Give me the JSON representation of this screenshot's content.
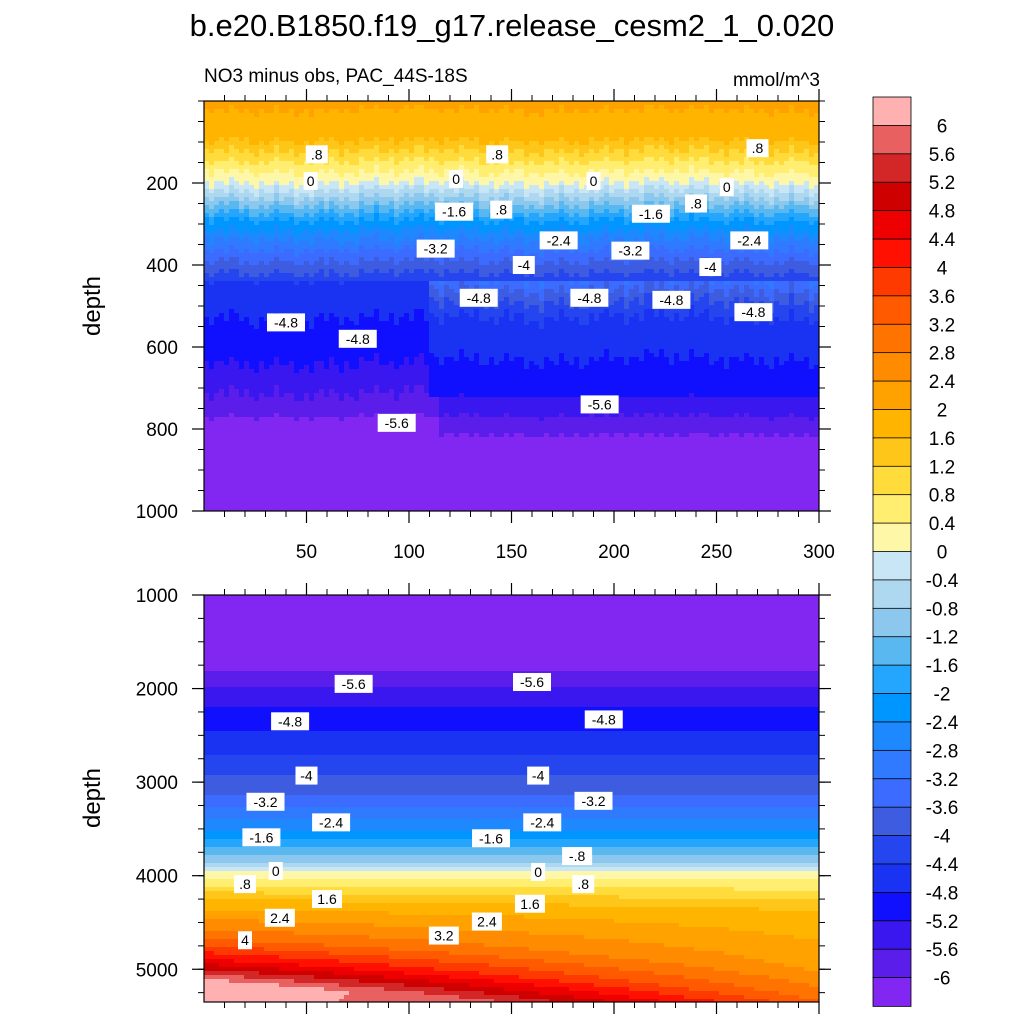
{
  "title": "b.e20.B1850.f19_g17.release_cesm2_1_0.020",
  "chart_data": {
    "type": "heatmap",
    "title": "b.e20.B1850.f19_g17.release_cesm2_1_0.020",
    "variable_label": "NO3 minus obs, PAC_44S-18S",
    "units": "mmol/m^3",
    "x_range": [
      0,
      300
    ],
    "x_ticks": [
      50,
      100,
      150,
      200,
      250,
      300
    ],
    "panels": [
      {
        "name": "upper",
        "ylabel": "depth",
        "ylim": [
          0,
          1000
        ],
        "y_ticks": [
          200,
          400,
          600,
          800,
          1000
        ],
        "contour_labels": [
          {
            "x": 55,
            "depth": 130,
            "text": ".8"
          },
          {
            "x": 143,
            "depth": 130,
            "text": ".8"
          },
          {
            "x": 270,
            "depth": 115,
            "text": ".8"
          },
          {
            "x": 52,
            "depth": 195,
            "text": "0"
          },
          {
            "x": 123,
            "depth": 190,
            "text": "0"
          },
          {
            "x": 190,
            "depth": 195,
            "text": "0"
          },
          {
            "x": 255,
            "depth": 210,
            "text": "0"
          },
          {
            "x": 145,
            "depth": 265,
            "text": ".8"
          },
          {
            "x": 240,
            "depth": 250,
            "text": ".8"
          },
          {
            "x": 122,
            "depth": 270,
            "text": "-1.6"
          },
          {
            "x": 218,
            "depth": 275,
            "text": "-1.6"
          },
          {
            "x": 173,
            "depth": 340,
            "text": "-2.4"
          },
          {
            "x": 266,
            "depth": 340,
            "text": "-2.4"
          },
          {
            "x": 113,
            "depth": 360,
            "text": "-3.2"
          },
          {
            "x": 208,
            "depth": 365,
            "text": "-3.2"
          },
          {
            "x": 156,
            "depth": 400,
            "text": "-4"
          },
          {
            "x": 247,
            "depth": 405,
            "text": "-4"
          },
          {
            "x": 134,
            "depth": 480,
            "text": "-4.8"
          },
          {
            "x": 188,
            "depth": 480,
            "text": "-4.8"
          },
          {
            "x": 228,
            "depth": 485,
            "text": "-4.8"
          },
          {
            "x": 268,
            "depth": 515,
            "text": "-4.8"
          },
          {
            "x": 40,
            "depth": 540,
            "text": "-4.8"
          },
          {
            "x": 75,
            "depth": 580,
            "text": "-4.8"
          },
          {
            "x": 94,
            "depth": 785,
            "text": "-5.6"
          },
          {
            "x": 193,
            "depth": 740,
            "text": "-5.6"
          }
        ]
      },
      {
        "name": "lower",
        "ylabel": "depth",
        "ylim": [
          1000,
          5350
        ],
        "y_ticks": [
          1000,
          2000,
          3000,
          4000,
          5000
        ],
        "contour_labels": [
          {
            "x": 73,
            "depth": 1950,
            "text": "-5.6"
          },
          {
            "x": 160,
            "depth": 1930,
            "text": "-5.6"
          },
          {
            "x": 42,
            "depth": 2350,
            "text": "-4.8"
          },
          {
            "x": 195,
            "depth": 2330,
            "text": "-4.8"
          },
          {
            "x": 50,
            "depth": 2930,
            "text": "-4"
          },
          {
            "x": 163,
            "depth": 2930,
            "text": "-4"
          },
          {
            "x": 30,
            "depth": 3210,
            "text": "-3.2"
          },
          {
            "x": 190,
            "depth": 3200,
            "text": "-3.2"
          },
          {
            "x": 62,
            "depth": 3430,
            "text": "-2.4"
          },
          {
            "x": 165,
            "depth": 3430,
            "text": "-2.4"
          },
          {
            "x": 28,
            "depth": 3590,
            "text": "-1.6"
          },
          {
            "x": 140,
            "depth": 3600,
            "text": "-1.6"
          },
          {
            "x": 182,
            "depth": 3790,
            "text": "-.8"
          },
          {
            "x": 35,
            "depth": 3950,
            "text": "0"
          },
          {
            "x": 163,
            "depth": 3960,
            "text": "0"
          },
          {
            "x": 20,
            "depth": 4090,
            "text": ".8"
          },
          {
            "x": 185,
            "depth": 4090,
            "text": ".8"
          },
          {
            "x": 60,
            "depth": 4250,
            "text": "1.6"
          },
          {
            "x": 159,
            "depth": 4300,
            "text": "1.6"
          },
          {
            "x": 37,
            "depth": 4450,
            "text": "2.4"
          },
          {
            "x": 138,
            "depth": 4490,
            "text": "2.4"
          },
          {
            "x": 20,
            "depth": 4690,
            "text": "4"
          },
          {
            "x": 117,
            "depth": 4640,
            "text": "3.2"
          }
        ]
      }
    ],
    "colorbar": {
      "levels": [
        "6",
        "5.6",
        "5.2",
        "4.8",
        "4.4",
        "4",
        "3.6",
        "3.2",
        "2.8",
        "2.4",
        "2",
        "1.6",
        "1.2",
        "0.8",
        "0.4",
        "0",
        "-0.4",
        "-0.8",
        "-1.2",
        "-1.6",
        "-2",
        "-2.4",
        "-2.8",
        "-3.2",
        "-3.6",
        "-4",
        "-4.4",
        "-4.8",
        "-5.2",
        "-5.6",
        "-6"
      ],
      "colors": [
        "#ffb1b1",
        "#e86060",
        "#d32626",
        "#cf0000",
        "#ee0000",
        "#ff1000",
        "#ff3a00",
        "#ff5a00",
        "#ff7400",
        "#ff8c00",
        "#ffa200",
        "#ffb400",
        "#ffc61a",
        "#ffdc3c",
        "#ffee70",
        "#fff7a8",
        "#c8e6f6",
        "#aed8f0",
        "#8cc8ee",
        "#5ab8f0",
        "#24a6ff",
        "#0096ff",
        "#1e88ff",
        "#2f7aff",
        "#3b6cff",
        "#3d5ce0",
        "#2546ee",
        "#1a33f3",
        "#1010ff",
        "#3b17ef",
        "#5a1dea",
        "#8227f2"
      ]
    }
  }
}
